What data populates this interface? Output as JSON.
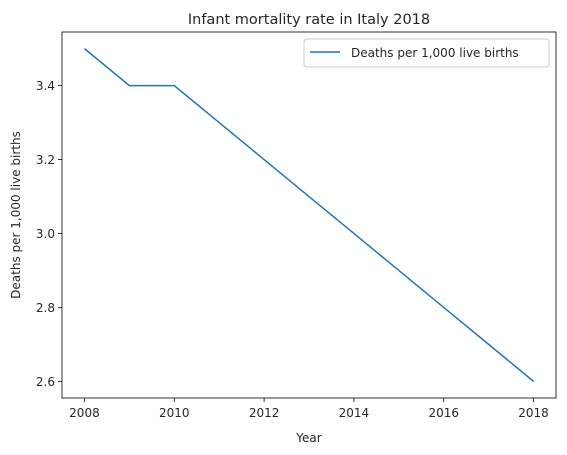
{
  "chart_data": {
    "type": "line",
    "title": "Infant mortality rate in Italy 2018",
    "xlabel": "Year",
    "ylabel": "Deaths per 1,000 live births",
    "x": [
      2008,
      2009,
      2010,
      2011,
      2012,
      2013,
      2014,
      2015,
      2016,
      2017,
      2018
    ],
    "series": [
      {
        "name": "Deaths per 1,000 live births",
        "color": "#1f77b4",
        "values": [
          3.5,
          3.4,
          3.4,
          3.3,
          3.2,
          3.1,
          3.0,
          2.9,
          2.8,
          2.7,
          2.6
        ]
      }
    ],
    "xlim": [
      2007.5,
      2018.5
    ],
    "ylim": [
      2.555,
      3.545
    ],
    "xticks": [
      2008,
      2010,
      2012,
      2014,
      2016,
      2018
    ],
    "yticks": [
      2.6,
      2.8,
      3.0,
      3.2,
      3.4
    ],
    "ytick_labels": [
      "2.6",
      "2.8",
      "3.0",
      "3.2",
      "3.4"
    ],
    "grid": false,
    "legend_position": "top-right"
  }
}
